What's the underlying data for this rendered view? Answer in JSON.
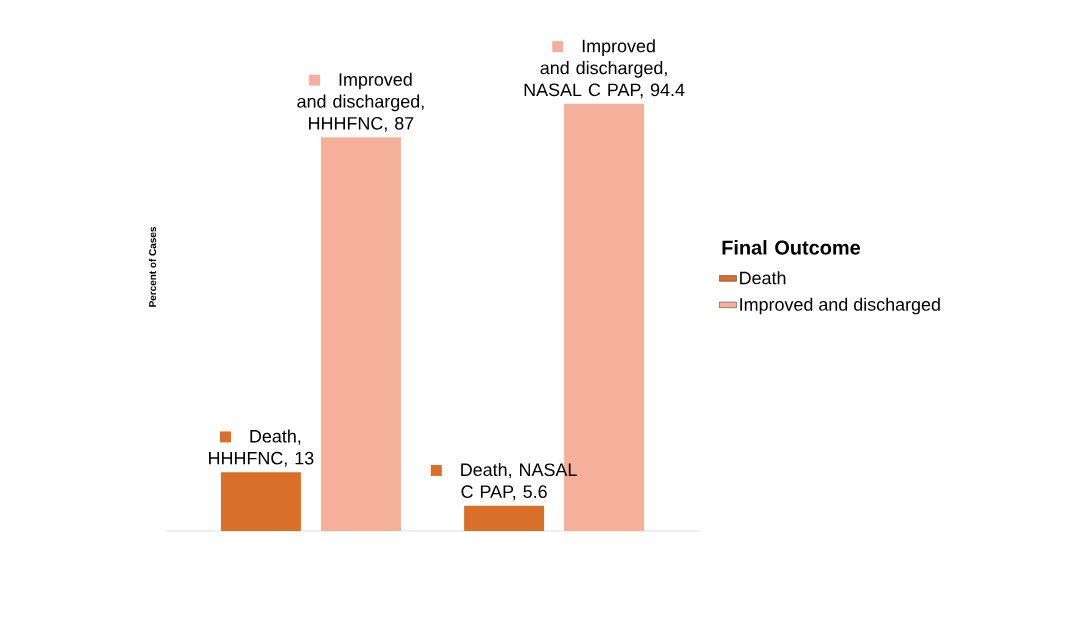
{
  "chart_data": {
    "type": "bar",
    "ylabel": "Percent of Cases",
    "legend_title": "Final Outcome",
    "categories": [
      null,
      null
    ],
    "legend": "right",
    "series": [
      {
        "name": "Death",
        "color": "#d9702a",
        "values": [
          13,
          5.6
        ],
        "value_labels": [
          "Death, HHHFNC, 13",
          "Death, NASAL C PAP, 5.6"
        ]
      },
      {
        "name": "Improved and discharged",
        "color": "#f4b09a",
        "values": [
          87,
          94.4
        ],
        "value_labels": [
          "Improved and discharged, HHHFNC, 87",
          "Improved and discharged, NASAL C PAP, 94.4"
        ]
      }
    ]
  }
}
